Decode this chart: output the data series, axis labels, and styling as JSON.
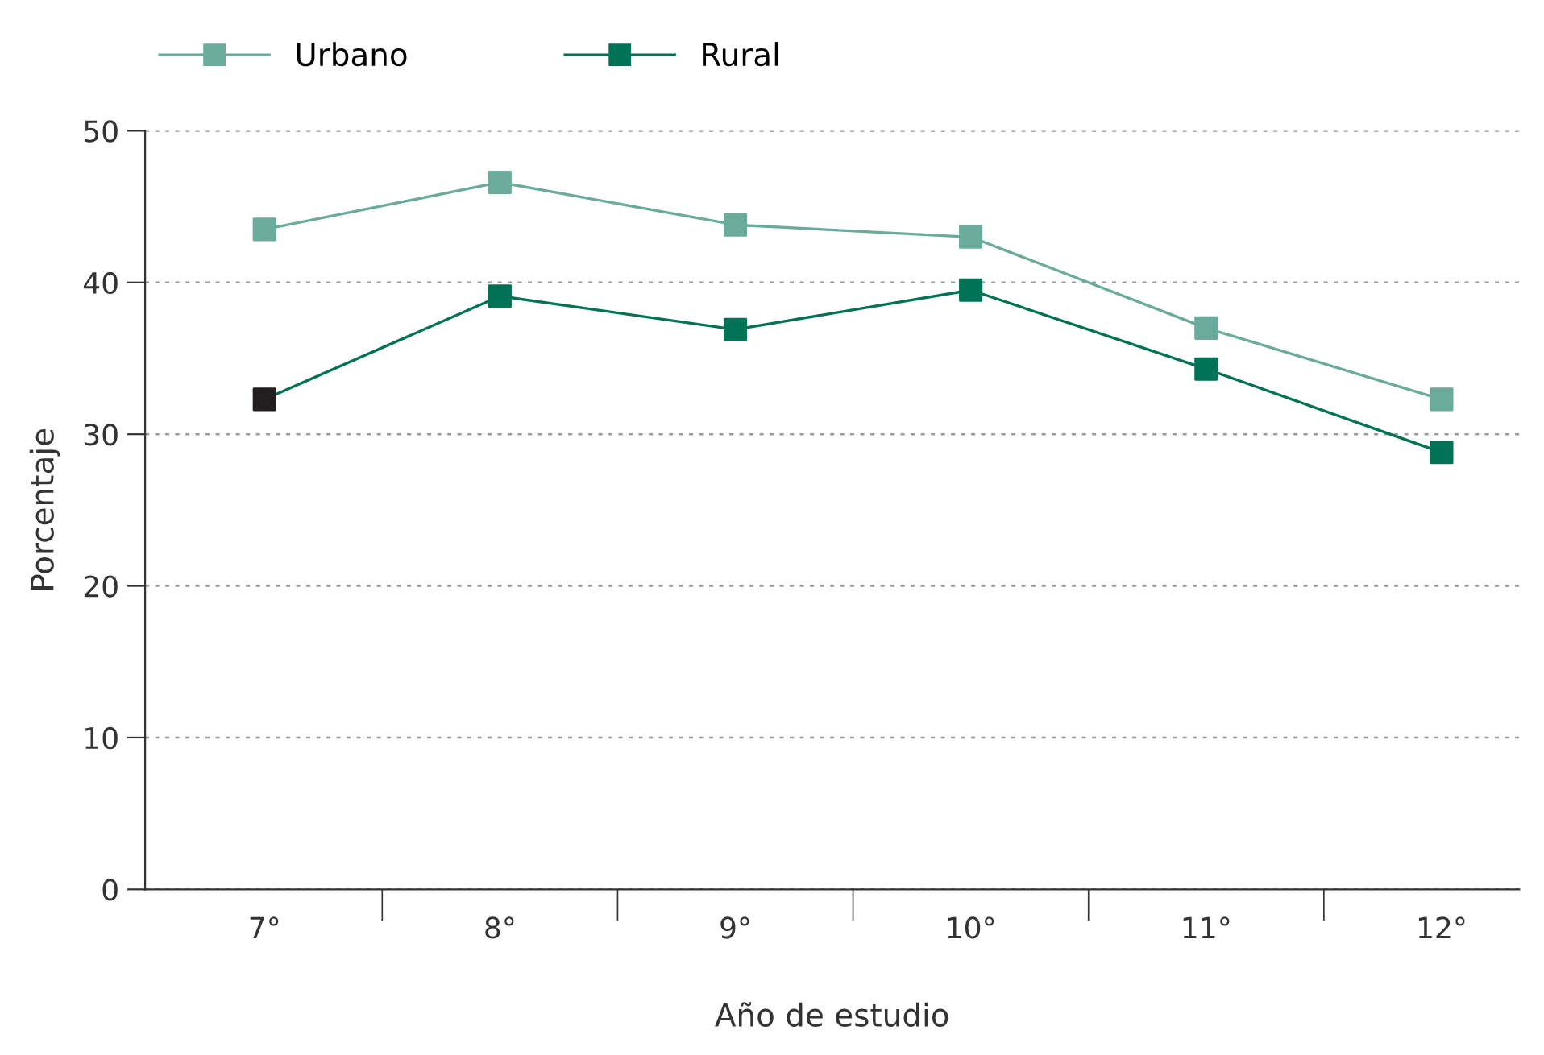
{
  "chart_data": {
    "type": "line",
    "xlabel": "Año de estudio",
    "ylabel": "Porcentaje",
    "categories": [
      "7°",
      "8°",
      "9°",
      "10°",
      "11°",
      "12°"
    ],
    "series": [
      {
        "name": "Urbano",
        "color": "#6aab9c",
        "values": [
          43.5,
          46.6,
          43.8,
          43.0,
          37.0,
          32.3
        ]
      },
      {
        "name": "Rural",
        "color": "#007256",
        "colors": [
          "#231f20",
          "#007256",
          "#007256",
          "#007256",
          "#007256",
          "#007256"
        ],
        "values": [
          32.3,
          39.1,
          36.9,
          39.5,
          34.3,
          28.8
        ]
      }
    ],
    "ylim": [
      0,
      50
    ],
    "yticks": [
      0,
      10,
      20,
      30,
      40,
      50
    ],
    "grid": "y",
    "legend": "top left",
    "marker": "square",
    "line_style": "solid"
  }
}
